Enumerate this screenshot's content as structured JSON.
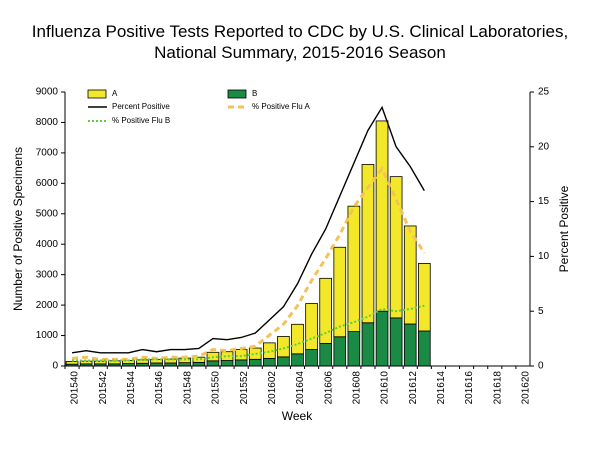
{
  "chart_data": {
    "type": "bar",
    "title": [
      "Influenza Positive Tests Reported to CDC by U.S. Clinical Laboratories,",
      "National Summary, 2015-2016 Season"
    ],
    "x_label": "Week",
    "y_label": "Number of Positive Specimens",
    "y2_label": "Percent Positive",
    "categories": [
      "201540",
      null,
      "201542",
      null,
      "201544",
      null,
      "201546",
      null,
      "201548",
      null,
      "201550",
      null,
      "201552",
      null,
      "201602",
      null,
      "201604",
      null,
      "201606",
      null,
      "201608",
      null,
      "201610",
      null,
      "201612",
      null,
      "201614",
      null,
      "201616",
      null,
      "201618",
      null,
      "201620"
    ],
    "ylim": [
      0,
      9000
    ],
    "yticks": [
      0,
      1000,
      2000,
      3000,
      4000,
      5000,
      6000,
      7000,
      8000,
      9000
    ],
    "y2lim": [
      0,
      25
    ],
    "y2ticks": [
      0,
      5,
      10,
      15,
      20,
      25
    ],
    "series": [
      {
        "name": "A",
        "type": "bar",
        "color": "#f2e829",
        "values": [
          90,
          90,
          90,
          100,
          100,
          110,
          120,
          130,
          150,
          170,
          280,
          290,
          340,
          370,
          510,
          670,
          970,
          1510,
          2140,
          2940,
          4120,
          5200,
          6250,
          4640,
          3220,
          2220,
          null,
          null,
          null,
          null,
          null,
          null,
          null
        ]
      },
      {
        "name": "B",
        "type": "bar",
        "color": "#1b8a45",
        "values": [
          60,
          70,
          70,
          70,
          80,
          90,
          100,
          100,
          110,
          120,
          170,
          180,
          200,
          220,
          250,
          300,
          400,
          540,
          740,
          960,
          1130,
          1420,
          1800,
          1580,
          1380,
          1150,
          null,
          null,
          null,
          null,
          null,
          null,
          null
        ]
      },
      {
        "name": "Percent Positive",
        "type": "line",
        "axis": "y2",
        "color": "#000000",
        "style": "solid",
        "values": [
          1.2,
          1.4,
          1.2,
          1.2,
          1.2,
          1.5,
          1.3,
          1.5,
          1.5,
          1.6,
          2.5,
          2.4,
          2.6,
          3.0,
          4.2,
          5.4,
          7.5,
          10.2,
          12.5,
          15.5,
          18.5,
          21.5,
          23.6,
          20.0,
          18.2,
          16.0,
          null,
          null,
          null,
          null,
          null,
          null,
          null
        ]
      },
      {
        "name": "% Positive Flu A",
        "type": "line",
        "axis": "y2",
        "color": "#f5c25a",
        "style": "dashed",
        "values": [
          0.7,
          0.8,
          0.6,
          0.6,
          0.6,
          0.8,
          0.7,
          0.8,
          0.8,
          0.9,
          1.5,
          1.4,
          1.6,
          1.8,
          2.8,
          3.8,
          5.5,
          7.8,
          9.8,
          12.0,
          14.5,
          16.3,
          18.0,
          15.2,
          12.3,
          10.3,
          null,
          null,
          null,
          null,
          null,
          null,
          null
        ]
      },
      {
        "name": "% Positive Flu B",
        "type": "line",
        "axis": "y2",
        "color": "#5ccf3a",
        "style": "dotted",
        "values": [
          0.5,
          0.5,
          0.5,
          0.5,
          0.5,
          0.6,
          0.6,
          0.6,
          0.6,
          0.6,
          0.8,
          0.9,
          0.9,
          1.1,
          1.3,
          1.6,
          2.0,
          2.5,
          3.0,
          3.6,
          4.0,
          4.5,
          5.2,
          5.0,
          5.2,
          5.5,
          null,
          null,
          null,
          null,
          null,
          null,
          null
        ]
      }
    ]
  }
}
